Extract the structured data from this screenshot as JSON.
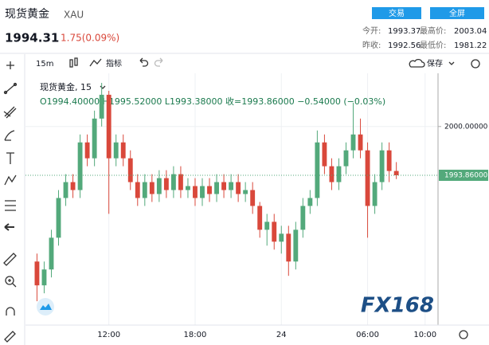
{
  "header": {
    "name": "现货黄金",
    "code": "XAU",
    "price": "1994.31",
    "change": "1.75(0.09%)",
    "buttons": [
      "交易",
      "全屏"
    ],
    "stats": [
      {
        "label": "今开:",
        "value": "1993.37"
      },
      {
        "label": "最高价:",
        "value": "2003.04"
      },
      {
        "label": "昨收:",
        "value": "1992.56"
      },
      {
        "label": "最低价:",
        "value": "1981.22"
      }
    ]
  },
  "toolbar": {
    "interval": "15m",
    "indicators": "指标",
    "save": "保存"
  },
  "legend": {
    "title": "现货黄金, 15",
    "ohlc": "O1994.40000 H1995.52000 L1993.38000 收=1993.86000 −0.54000 (−0.03%)"
  },
  "chart_data": {
    "type": "candlestick",
    "x": [
      7,
      7.5,
      8,
      8.5,
      9,
      9.5,
      10,
      10.5,
      11,
      11.5,
      12,
      12.5,
      13,
      13.5,
      14,
      14.5,
      15,
      15.5,
      16,
      16.5,
      17,
      17.5,
      18,
      18.5,
      19,
      19.5,
      20,
      20.5,
      21,
      21.5,
      22,
      22.5,
      23,
      23.5,
      24,
      24.5,
      25,
      25.5,
      26,
      26.5,
      27,
      27.5,
      28,
      28.5,
      29,
      29.5,
      30,
      30.5,
      31,
      31.5,
      32
    ],
    "open": [
      1983,
      1980,
      1982,
      1986,
      1991,
      1993,
      1992,
      1998,
      1996,
      2001,
      2004,
      1996,
      1998,
      1996,
      1993,
      1991,
      1993,
      1991.5,
      1993.5,
      1992,
      1994,
      1992,
      1992.5,
      1991,
      1992.5,
      1991.5,
      1993,
      1992,
      1993,
      1991.5,
      1992,
      1990,
      1987,
      1988,
      1985.5,
      1986.5,
      1983,
      1987,
      1990,
      1991,
      1998,
      1995,
      1993,
      1995,
      1997,
      1999,
      1997,
      1990,
      1993,
      1997,
      1994.4
    ],
    "high": [
      1984,
      1983,
      1987,
      1992,
      1994,
      1994,
      1999,
      1999,
      2002,
      2005.5,
      2004.5,
      1999,
      1999,
      1997,
      1994,
      1994,
      1994,
      1994.5,
      1994.5,
      1995,
      1995,
      1993.5,
      1993.5,
      1993.5,
      1993.5,
      1994,
      1994,
      1994,
      1994,
      1993,
      1993,
      1990.5,
      1989,
      1989,
      1987.5,
      1987.5,
      1988,
      1991,
      1992,
      1999.5,
      1999,
      1996,
      1996,
      1998,
      2003,
      2001,
      1998,
      1994,
      1998,
      1998,
      1995.52
    ],
    "low": [
      1978,
      1979,
      1981,
      1985,
      1990,
      1991,
      1991,
      1995,
      1995,
      2000,
      1989,
      1995,
      1995,
      1992,
      1990,
      1990,
      1990.5,
      1990.5,
      1991,
      1991,
      1991,
      1991,
      1990,
      1990,
      1990.5,
      1990.5,
      1991,
      1991,
      1990.5,
      1990.5,
      1989,
      1986,
      1985,
      1984.5,
      1984,
      1981.2,
      1982,
      1986,
      1989,
      1990,
      1994,
      1992,
      1992,
      1994,
      1996,
      1996,
      1986,
      1989,
      1992,
      1993,
      1993.38
    ],
    "close": [
      1980,
      1982,
      1986,
      1991,
      1993,
      1992,
      1998,
      1996,
      2001,
      2004,
      1996,
      1998,
      1996,
      1993,
      1991,
      1993,
      1991.5,
      1993.5,
      1992,
      1994,
      1992,
      1992.5,
      1991,
      1992.5,
      1991.5,
      1993,
      1992,
      1993,
      1991.5,
      1992,
      1990,
      1987,
      1988,
      1985.5,
      1986.5,
      1983,
      1987,
      1990,
      1991,
      1998,
      1995,
      1993,
      1995,
      1997,
      1999,
      1997,
      1990,
      1993,
      1997,
      1994.4,
      1993.86
    ],
    "up_color": "#53a97b",
    "down_color": "#d9483b",
    "xlim": [
      6.2,
      34.9
    ],
    "ylim": [
      1975.8,
      2006.4
    ],
    "xticks": [
      {
        "value": 12,
        "label": "12:00"
      },
      {
        "value": 18,
        "label": "18:00"
      },
      {
        "value": 24,
        "label": "24"
      },
      {
        "value": 30,
        "label": "06:00"
      },
      {
        "value": 34,
        "label": "10:00"
      }
    ],
    "yticks": [
      {
        "value": 2000,
        "label": "2000.00000"
      }
    ],
    "last_price": {
      "value": 1993.86,
      "label": "1993.86000"
    },
    "grid": true,
    "watermark": "FX168"
  }
}
